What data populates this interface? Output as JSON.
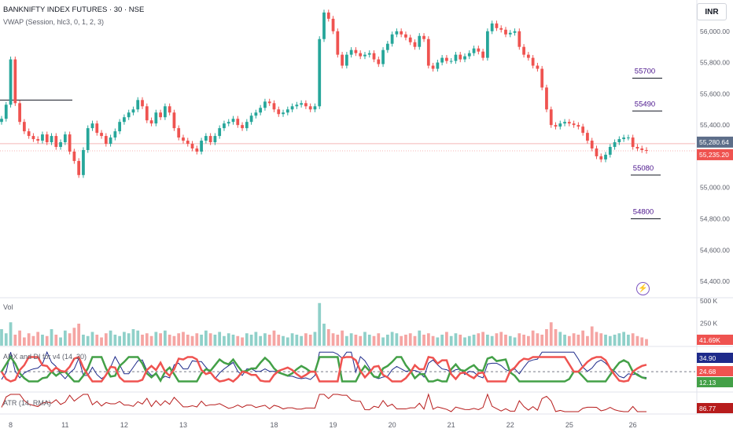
{
  "header": {
    "symbol_line": "BANKNIFTY INDEX FUTURES · 30 · NSE",
    "indicator_line": "VWAP (Session, hlc3, 0, 1, 2, 3)",
    "currency": "INR"
  },
  "colors": {
    "up": "#26a69a",
    "down": "#ef5350",
    "volume_up": "#8fd0c9",
    "volume_down": "#f5a5a3",
    "adx": "#1e2a8a",
    "di_plus": "#43a047",
    "di_minus": "#ef5350",
    "atr": "#b71c1c",
    "annotation": "#4a148c",
    "price_tag": "#ef5350",
    "vwap_tag": "#5d6e89"
  },
  "chart_data": [
    {
      "type": "candlestick",
      "panel": "price",
      "x_ticks": [
        "8",
        "11",
        "12",
        "13",
        "18",
        "19",
        "20",
        "21",
        "22",
        "25",
        "26"
      ],
      "y_ticks": [
        "56,000.00",
        "55,800.00",
        "55,600.00",
        "55,400.00",
        "55,000.00",
        "54,800.00",
        "54,600.00",
        "54,400.00"
      ],
      "ylim": [
        54300,
        56200
      ],
      "last_price": "55,235.20",
      "vwap_value": "55,280.64",
      "level_annotations": [
        {
          "label": "55700",
          "value": 55700
        },
        {
          "label": "55490",
          "value": 55490
        },
        {
          "label": "55080",
          "value": 55080
        },
        {
          "label": "54800",
          "value": 54800
        }
      ],
      "horizontal_level": 55560,
      "close_series": [
        55440,
        55530,
        55820,
        55540,
        55420,
        55360,
        55330,
        55310,
        55300,
        55340,
        55290,
        55330,
        55260,
        55290,
        55340,
        55230,
        55170,
        55080,
        55240,
        55380,
        55410,
        55350,
        55330,
        55280,
        55320,
        55360,
        55420,
        55450,
        55480,
        55500,
        55560,
        55520,
        55430,
        55410,
        55480,
        55450,
        55520,
        55480,
        55380,
        55320,
        55300,
        55280,
        55250,
        55230,
        55300,
        55330,
        55290,
        55330,
        55380,
        55410,
        55420,
        55440,
        55400,
        55380,
        55420,
        55460,
        55480,
        55510,
        55550,
        55540,
        55500,
        55470,
        55480,
        55500,
        55520,
        55530,
        55540,
        55520,
        55500,
        55520,
        55950,
        56120,
        56080,
        56000,
        55850,
        55780,
        55850,
        55880,
        55860,
        55840,
        55850,
        55860,
        55820,
        55790,
        55880,
        55920,
        55980,
        56000,
        55980,
        55960,
        55930,
        55900,
        55970,
        55950,
        55780,
        55760,
        55800,
        55830,
        55810,
        55810,
        55850,
        55820,
        55840,
        55860,
        55890,
        55870,
        55830,
        56000,
        56050,
        56020,
        56010,
        55980,
        55990,
        56000,
        55900,
        55850,
        55830,
        55780,
        55760,
        55640,
        55500,
        55400,
        55390,
        55410,
        55420,
        55410,
        55400,
        55390,
        55350,
        55300,
        55250,
        55200,
        55180,
        55210,
        55260,
        55290,
        55310,
        55320,
        55320,
        55260,
        55250,
        55240,
        55235
      ],
      "volume_series": [
        60,
        45,
        85,
        40,
        55,
        30,
        45,
        35,
        50,
        40,
        35,
        60,
        40,
        30,
        55,
        45,
        65,
        80,
        40,
        35,
        50,
        40,
        30,
        45,
        55,
        40,
        35,
        50,
        45,
        60,
        55,
        40,
        45,
        35,
        50,
        45,
        55,
        40,
        35,
        45,
        50,
        40,
        35,
        45,
        40,
        55,
        45,
        40,
        50,
        35,
        45,
        40,
        35,
        30,
        45,
        40,
        50,
        35,
        45,
        40,
        55,
        40,
        35,
        30,
        45,
        40,
        35,
        45,
        40,
        50,
        155,
        80,
        60,
        45,
        40,
        55,
        35,
        45,
        40,
        35,
        50,
        40,
        35,
        45,
        30,
        40,
        50,
        45,
        35,
        40,
        45,
        35,
        55,
        40,
        45,
        35,
        30,
        40,
        50,
        35,
        45,
        40,
        30,
        35,
        40,
        45,
        50,
        40,
        35,
        45,
        50,
        40,
        35,
        30,
        45,
        40,
        35,
        55,
        45,
        40,
        60,
        85,
        60,
        50,
        40,
        35,
        45,
        40,
        55,
        35,
        70,
        50,
        45,
        40,
        35,
        40,
        45,
        50,
        40,
        45,
        35,
        30,
        24
      ],
      "adx_last": "34.90",
      "di_minus_last": "24.68",
      "di_plus_last": "12.13",
      "atr_last": "86.77",
      "volume_last": "41.69K",
      "volume_ticks": [
        "500 K",
        "250 K"
      ]
    }
  ],
  "panels": {
    "volume_label": "Vol",
    "adx_label": "ADX and DI for v4 (14, 20)",
    "atr_label": "ATR (14, RMA)"
  }
}
